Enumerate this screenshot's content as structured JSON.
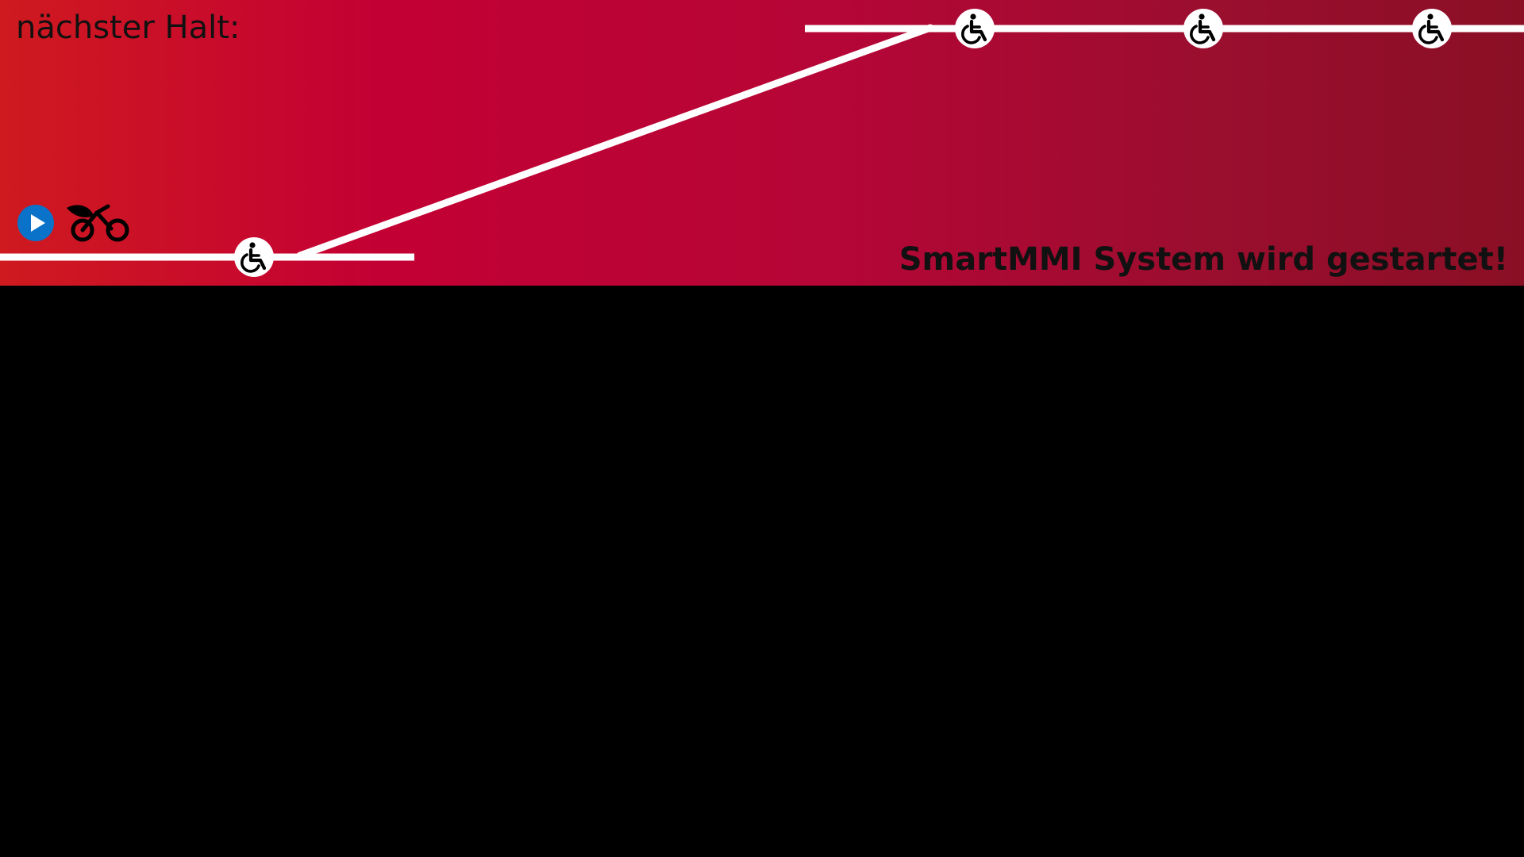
{
  "banner": {
    "next_stop_label": "nächster Halt:",
    "status_message": "SmartMMI System wird gestartet!",
    "gradient_colors": [
      "#cf1a1f",
      "#c30034",
      "#b50637",
      "#9a0e2e",
      "#8a0f25"
    ],
    "line_color": "#ffffff",
    "text_color": "#111111"
  },
  "icons": {
    "play": {
      "name": "play-circle-icon",
      "color": "#0a72c8"
    },
    "bike": {
      "name": "e-bike-icon",
      "color": "#000000"
    },
    "accessible": {
      "name": "wheelchair-icon"
    }
  },
  "route": {
    "stops": [
      {
        "id": "stop-1",
        "accessible": true
      },
      {
        "id": "stop-2",
        "accessible": true
      },
      {
        "id": "stop-3",
        "accessible": true
      },
      {
        "id": "stop-4",
        "accessible": true
      }
    ]
  }
}
